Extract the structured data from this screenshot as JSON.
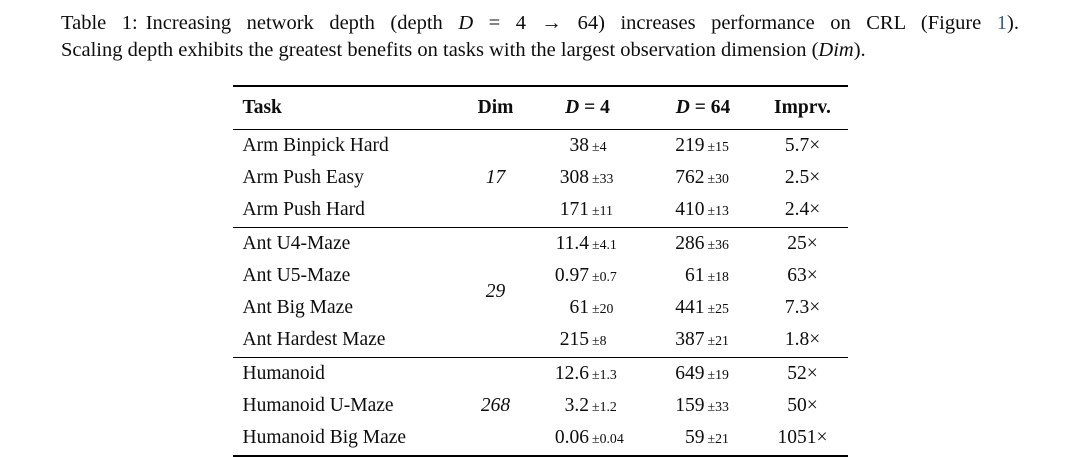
{
  "colors": {
    "text": "#0d0d0d",
    "rule": "#000000",
    "link": "#3b5b92"
  },
  "caption": {
    "line1": [
      {
        "t": "Table 1:"
      },
      {
        "t": "Increasing network depth (depth "
      },
      {
        "t": "D"
      },
      {
        "t": " = 4 → 64) increases performance on CRL (Figure "
      },
      {
        "t": "1"
      },
      {
        "t": ")."
      }
    ],
    "line2": [
      {
        "t": "Scaling depth exhibits the greatest benefits on tasks with the largest observation dimension ("
      },
      {
        "t": "Dim"
      },
      {
        "t": ")."
      }
    ]
  },
  "table": {
    "header": {
      "task": "Task",
      "dim": "Dim",
      "d4_var": "D",
      "d4_rest": " = 4",
      "d64_var": "D",
      "d64_rest": " = 64",
      "imprv": "Imprv."
    },
    "groups": [
      {
        "dim": "17",
        "rows": [
          {
            "task": "Arm Binpick Hard",
            "d4": "38",
            "d4_err": "±4",
            "d64": "219",
            "d64_err": "±15",
            "imprv": "5.7×"
          },
          {
            "task": "Arm Push Easy",
            "d4": "308",
            "d4_err": "±33",
            "d64": "762",
            "d64_err": "±30",
            "imprv": "2.5×"
          },
          {
            "task": "Arm Push Hard",
            "d4": "171",
            "d4_err": "±11",
            "d64": "410",
            "d64_err": "±13",
            "imprv": "2.4×"
          }
        ]
      },
      {
        "dim": "29",
        "rows": [
          {
            "task": "Ant U4-Maze",
            "d4": "11.4",
            "d4_err": "±4.1",
            "d64": "286",
            "d64_err": "±36",
            "imprv": "25×"
          },
          {
            "task": "Ant U5-Maze",
            "d4": "0.97",
            "d4_err": "±0.7",
            "d64": "61",
            "d64_err": "±18",
            "imprv": "63×"
          },
          {
            "task": "Ant Big Maze",
            "d4": "61",
            "d4_err": "±20",
            "d64": "441",
            "d64_err": "±25",
            "imprv": "7.3×"
          },
          {
            "task": "Ant Hardest Maze",
            "d4": "215",
            "d4_err": "±8",
            "d64": "387",
            "d64_err": "±21",
            "imprv": "1.8×"
          }
        ]
      },
      {
        "dim": "268",
        "rows": [
          {
            "task": "Humanoid",
            "d4": "12.6",
            "d4_err": "±1.3",
            "d64": "649",
            "d64_err": "±19",
            "imprv": "52×"
          },
          {
            "task": "Humanoid U-Maze",
            "d4": "3.2",
            "d4_err": "±1.2",
            "d64": "159",
            "d64_err": "±33",
            "imprv": "50×"
          },
          {
            "task": "Humanoid Big Maze",
            "d4": "0.06",
            "d4_err": "±0.04",
            "d64": "59",
            "d64_err": "±21",
            "imprv": "1051×"
          }
        ]
      }
    ]
  }
}
